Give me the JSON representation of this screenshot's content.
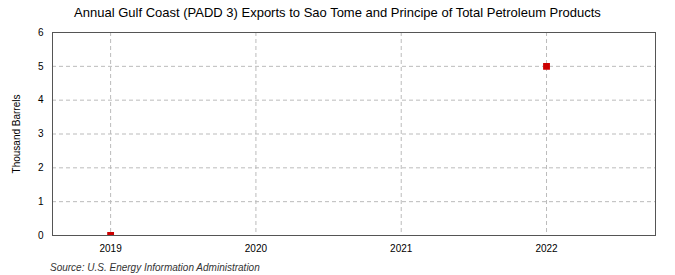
{
  "chart_data": {
    "type": "scatter",
    "title": "Annual Gulf Coast (PADD 3) Exports to Sao Tome and Principe of Total Petroleum Products",
    "ylabel": "Thousand Barrels",
    "source": "Source: U.S. Energy Information Administration",
    "x": [
      2019,
      2022
    ],
    "values": [
      0,
      5
    ],
    "color": "#cc0000",
    "marker": "square",
    "xlim": [
      2018.6,
      2022.75
    ],
    "ylim": [
      0,
      6
    ],
    "xticks": [
      2019,
      2020,
      2021,
      2022
    ],
    "yticks": [
      0,
      1,
      2,
      3,
      4,
      5,
      6
    ],
    "grid": true
  }
}
